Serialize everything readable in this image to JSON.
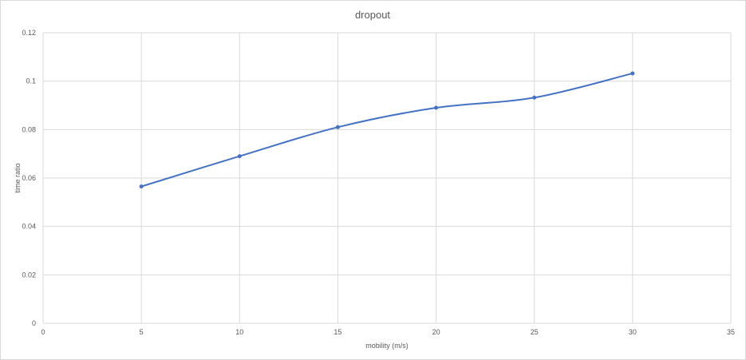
{
  "chart_data": {
    "type": "line",
    "title": "dropout",
    "xlabel": "mobility  (m/s)",
    "ylabel": "time ratio",
    "x": [
      5,
      10,
      15,
      20,
      25,
      30
    ],
    "series": [
      {
        "values": [
          0.0565,
          0.069,
          0.081,
          0.089,
          0.0932,
          0.1032
        ]
      }
    ],
    "xlim": [
      0,
      35
    ],
    "ylim": [
      0,
      0.12
    ],
    "xticks": [
      0,
      5,
      10,
      15,
      20,
      25,
      30,
      35
    ],
    "yticks": [
      0,
      0.02,
      0.04,
      0.06,
      0.08,
      0.1,
      0.12
    ],
    "xtick_labels": [
      "0",
      "5",
      "10",
      "15",
      "20",
      "25",
      "30",
      "35"
    ],
    "ytick_labels": [
      "0",
      "0.02",
      "0.04",
      "0.06",
      "0.08",
      "0.1",
      "0.12"
    ],
    "grid": true,
    "smooth": true,
    "line_color": "#4472c4",
    "marker_color": "#4472c4",
    "legend": "none"
  }
}
